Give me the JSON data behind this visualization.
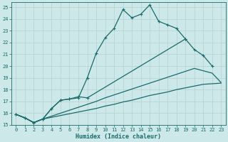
{
  "xlabel": "Humidex (Indice chaleur)",
  "bg_color": "#cce8e8",
  "grid_color": "#b8d4d4",
  "line_color": "#1a6b6b",
  "xlim": [
    -0.5,
    23.5
  ],
  "ylim": [
    15.0,
    25.4
  ],
  "yticks": [
    15,
    16,
    17,
    18,
    19,
    20,
    21,
    22,
    23,
    24,
    25
  ],
  "xticks": [
    0,
    1,
    2,
    3,
    4,
    5,
    6,
    7,
    8,
    9,
    10,
    11,
    12,
    13,
    14,
    15,
    16,
    17,
    18,
    19,
    20,
    21,
    22,
    23
  ],
  "series1_x": [
    0,
    1,
    2,
    3,
    4,
    5,
    6,
    7,
    8,
    9,
    10,
    11,
    12,
    13,
    14,
    15,
    16,
    17,
    18,
    19
  ],
  "series1_y": [
    15.9,
    15.6,
    15.2,
    15.5,
    16.4,
    17.1,
    17.2,
    17.3,
    19.0,
    21.1,
    22.4,
    23.2,
    24.8,
    24.1,
    24.4,
    25.2,
    23.8,
    23.5,
    23.2,
    22.3
  ],
  "series2_x": [
    0,
    1,
    2,
    3,
    4,
    5,
    6,
    7,
    8,
    19,
    20,
    21,
    22
  ],
  "series2_y": [
    15.9,
    15.6,
    15.2,
    15.5,
    16.4,
    17.1,
    17.2,
    17.4,
    17.3,
    22.3,
    21.4,
    20.9,
    20.0
  ],
  "series3_x": [
    0,
    1,
    2,
    3,
    4,
    5,
    6,
    7,
    8,
    9,
    10,
    11,
    12,
    13,
    14,
    15,
    16,
    17,
    18,
    19,
    20,
    21,
    22,
    23
  ],
  "series3_y": [
    15.9,
    15.6,
    15.2,
    15.5,
    15.75,
    16.0,
    16.25,
    16.5,
    16.75,
    17.0,
    17.3,
    17.55,
    17.8,
    18.05,
    18.3,
    18.55,
    18.8,
    19.05,
    19.3,
    19.55,
    19.8,
    19.6,
    19.4,
    18.6
  ],
  "series4_x": [
    0,
    1,
    2,
    3,
    4,
    5,
    6,
    7,
    8,
    9,
    10,
    11,
    12,
    13,
    14,
    15,
    16,
    17,
    18,
    19,
    20,
    21,
    22,
    23
  ],
  "series4_y": [
    15.9,
    15.6,
    15.2,
    15.5,
    15.65,
    15.8,
    15.95,
    16.1,
    16.25,
    16.4,
    16.6,
    16.75,
    16.95,
    17.1,
    17.3,
    17.5,
    17.65,
    17.8,
    18.0,
    18.15,
    18.3,
    18.45,
    18.5,
    18.55
  ]
}
